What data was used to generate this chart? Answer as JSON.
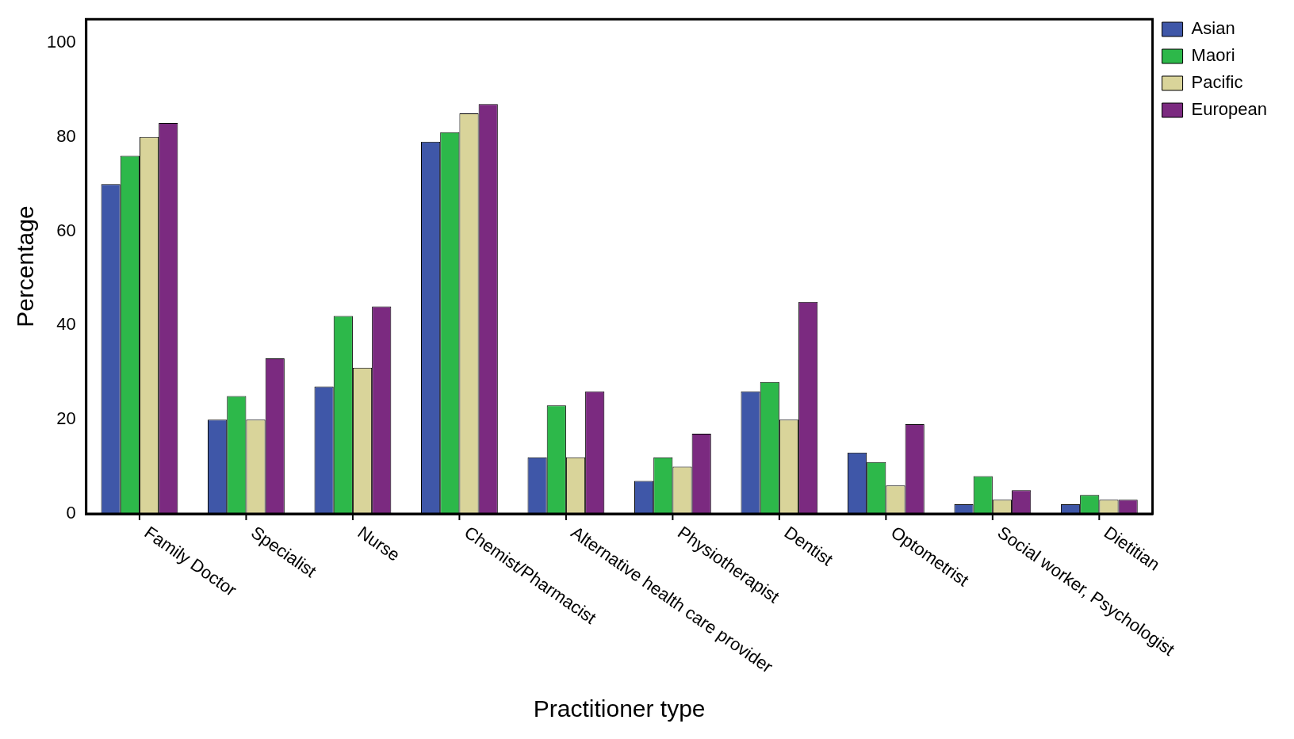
{
  "chart_data": {
    "type": "bar",
    "xlabel": "Practitioner type",
    "ylabel": "Percentage",
    "categories": [
      "Family Doctor",
      "Specialist",
      "Nurse",
      "Chemist/Pharmacist",
      "Alternative health care provider",
      "Physiotherapist",
      "Dentist",
      "Optometrist",
      "Social worker, Psychologist",
      "Dietitian"
    ],
    "series": [
      {
        "name": "Asian",
        "color": "#3f57a8",
        "values": [
          70,
          20,
          27,
          79,
          12,
          7,
          26,
          13,
          2,
          2
        ]
      },
      {
        "name": "Maori",
        "color": "#2db84a",
        "values": [
          76,
          25,
          42,
          81,
          23,
          12,
          28,
          11,
          8,
          4
        ]
      },
      {
        "name": "Pacific",
        "color": "#d9d49a",
        "values": [
          80,
          20,
          31,
          85,
          12,
          10,
          20,
          6,
          3,
          3
        ]
      },
      {
        "name": "European",
        "color": "#7b2a80",
        "values": [
          83,
          33,
          44,
          87,
          26,
          17,
          45,
          19,
          5,
          3
        ]
      }
    ],
    "ylim": [
      0,
      105
    ],
    "yticks": [
      0,
      20,
      40,
      60,
      80,
      100
    ],
    "grid": false,
    "legend": "top right"
  }
}
